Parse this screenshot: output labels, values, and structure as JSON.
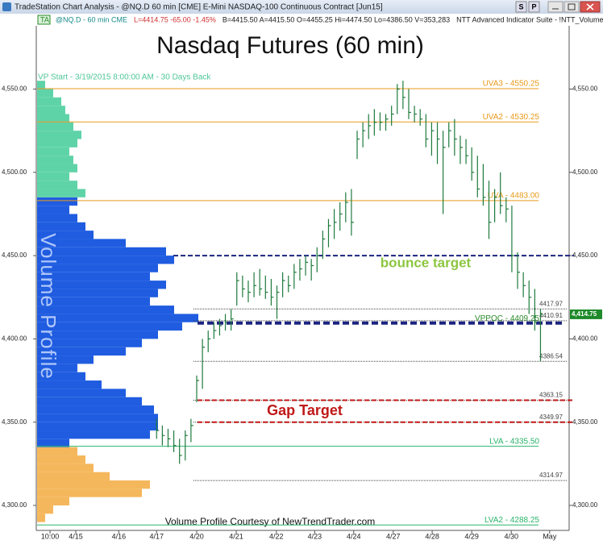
{
  "window": {
    "title": "TradeStation Chart Analysis - @NQ.D 60 min [CME] E-Mini NASDAQ-100 Continuous Contract [Jun15]",
    "buttons": [
      "S",
      "P"
    ]
  },
  "chart_data": {
    "type": "ohlc",
    "title": "Nasdaq Futures (60 min)",
    "subtitle": "VP Start - 3/19/2015 8:00:00 AM - 30 Days Back",
    "watermark": "Volume Profile",
    "footer": "Volume Profile Courtesy of NewTrendTrader.com",
    "status_line": [
      {
        "text": "TA",
        "color": "#2a8a2a"
      },
      {
        "text": "@NQ.D - 60 min CME",
        "color": "#1a8a8a"
      },
      {
        "text": "L=4414.75 -65.00 -1.45%",
        "color": "#d03030"
      },
      {
        "text": "B=4415.50 A=4415.50 O=4455.25 Hi=4474.50 Lo=4386.50 V=353,283",
        "color": "#202020"
      },
      {
        "text": "NTT Advanced Indicator Suite - !NTT_VolumeProfi",
        "color": "#202020"
      }
    ],
    "bar_color": "#1e7a3c",
    "high": [
      4352,
      4348,
      4346,
      4345,
      4340,
      4345,
      4352,
      4378,
      4400,
      4405,
      4410,
      4412,
      4415,
      4418,
      4440,
      4438,
      4435,
      4440,
      4442,
      4438,
      4436,
      4432,
      4440,
      4438,
      4445,
      4448,
      4450,
      4448,
      4455,
      4465,
      4472,
      4478,
      4482,
      4488,
      4490,
      4525,
      4530,
      4535,
      4538,
      4536,
      4535,
      4540,
      4553,
      4555,
      4550,
      4540,
      4538,
      4535,
      4530,
      4530,
      4525,
      4530,
      4532,
      4522,
      4520,
      4515,
      4510,
      4505,
      4495,
      4490,
      4500,
      4485,
      4480,
      4452,
      4440,
      4435,
      4430,
      4418
    ],
    "low": [
      4340,
      4336,
      4335,
      4332,
      4325,
      4327,
      4338,
      4362,
      4370,
      4392,
      4400,
      4402,
      4405,
      4405,
      4420,
      4425,
      4422,
      4425,
      4426,
      4424,
      4420,
      4412,
      4425,
      4428,
      4430,
      4435,
      4438,
      4435,
      4440,
      4448,
      4455,
      4460,
      4465,
      4470,
      4462,
      4508,
      4515,
      4520,
      4522,
      4525,
      4525,
      4528,
      4535,
      4538,
      4532,
      4530,
      4528,
      4515,
      4510,
      4505,
      4475,
      4515,
      4510,
      4505,
      4505,
      4495,
      4485,
      4480,
      4460,
      4470,
      4475,
      4470,
      4440,
      4430,
      4425,
      4415,
      4405,
      4386.5
    ],
    "close": [
      4345,
      4342,
      4340,
      4336,
      4330,
      4342,
      4348,
      4375,
      4395,
      4400,
      4405,
      4408,
      4410,
      4412,
      4435,
      4430,
      4428,
      4432,
      4430,
      4428,
      4425,
      4428,
      4435,
      4432,
      4440,
      4442,
      4446,
      4444,
      4450,
      4460,
      4468,
      4470,
      4475,
      4482,
      4470,
      4520,
      4525,
      4528,
      4530,
      4530,
      4532,
      4535,
      4550,
      4545,
      4536,
      4535,
      4532,
      4520,
      4525,
      4520,
      4515,
      4525,
      4520,
      4515,
      4510,
      4500,
      4490,
      4485,
      4470,
      4485,
      4480,
      4478,
      4450,
      4440,
      4432,
      4425,
      4410,
      4414.75
    ],
    "xlim": [
      -21,
      72
    ],
    "xticks": [
      {
        "value": -18.6,
        "label": "10:00"
      },
      {
        "value": -14.1,
        "label": "4/15"
      },
      {
        "value": -6.6,
        "label": "4/16"
      },
      {
        "value": 0,
        "label": "4/17"
      },
      {
        "value": 7,
        "label": "4/20"
      },
      {
        "value": 13.9,
        "label": "4/21"
      },
      {
        "value": 20.9,
        "label": "4/22"
      },
      {
        "value": 27.6,
        "label": "4/23"
      },
      {
        "value": 34.4,
        "label": "4/24"
      },
      {
        "value": 41.3,
        "label": "4/27"
      },
      {
        "value": 48.1,
        "label": "4/28"
      },
      {
        "value": 55,
        "label": "4/29"
      },
      {
        "value": 61.9,
        "label": "4/30"
      },
      {
        "value": 68.6,
        "label": "May"
      }
    ],
    "ylim": [
      4285,
      4588
    ],
    "yticks": [
      {
        "value": 4300,
        "label": "4,300.00"
      },
      {
        "value": 4350,
        "label": "4,350.00"
      },
      {
        "value": 4400,
        "label": "4,400.00"
      },
      {
        "value": 4450,
        "label": "4,450.00"
      },
      {
        "value": 4500,
        "label": "4,500.00"
      },
      {
        "value": 4550,
        "label": "4,550.00"
      }
    ],
    "last_price": {
      "value": 4414.75,
      "label": "4,414.75",
      "color": "#1e8a2a"
    },
    "profile_xlim": [
      0,
      200
    ],
    "profile": [
      {
        "color": "#f5b75c",
        "prices": [
          4290,
          4295,
          4300,
          4305,
          4310,
          4315,
          4320,
          4325,
          4330
        ],
        "volumes": [
          10,
          20,
          40,
          130,
          140,
          90,
          70,
          60,
          50
        ]
      },
      {
        "color": "#1f5ce0",
        "prices": [
          4335,
          4340,
          4345,
          4350,
          4355,
          4360,
          4365,
          4370,
          4375,
          4380,
          4385,
          4390,
          4395,
          4400,
          4405,
          4410,
          4415,
          4420,
          4425,
          4430,
          4435,
          4440,
          4445,
          4450,
          4455,
          4460,
          4465,
          4470,
          4475,
          4480
        ],
        "volumes": [
          40,
          140,
          150,
          150,
          145,
          130,
          110,
          80,
          60,
          50,
          70,
          110,
          130,
          150,
          180,
          200,
          170,
          140,
          150,
          160,
          140,
          150,
          170,
          160,
          110,
          70,
          60,
          50,
          40,
          50
        ]
      },
      {
        "color": "#5fd3a8",
        "prices": [
          4485,
          4490,
          4495,
          4500,
          4505,
          4510,
          4515,
          4520,
          4525,
          4530,
          4535,
          4540,
          4545,
          4550
        ],
        "volumes": [
          60,
          50,
          40,
          50,
          45,
          40,
          50,
          55,
          45,
          40,
          35,
          30,
          20,
          10
        ]
      }
    ],
    "levels": [
      {
        "value": 4550.25,
        "label": "UVA3 - 4550.25",
        "color": "#e89a1a",
        "style": "solid"
      },
      {
        "value": 4530.25,
        "label": "UVA2 - 4530.25",
        "color": "#e89a1a",
        "style": "solid"
      },
      {
        "value": 4483.0,
        "label": "UVA - 4483.00",
        "color": "#e89a1a",
        "style": "solid"
      },
      {
        "value": 4417.97,
        "label": "4417.97",
        "color": "#444444",
        "style": "dotted"
      },
      {
        "value": 4410.91,
        "label": "4410.91",
        "color": "#444444",
        "style": "dotted"
      },
      {
        "value": 4409.25,
        "label": "VPPOC - 4409.25",
        "color": "#2a8a2a",
        "style": "none"
      },
      {
        "value": 4386.54,
        "label": "4386.54",
        "color": "#444444",
        "style": "dotted"
      },
      {
        "value": 4363.15,
        "label": "4363.15",
        "color": "#444444",
        "style": "dotted"
      },
      {
        "value": 4349.97,
        "label": "4349.97",
        "color": "#444444",
        "style": "dotted"
      },
      {
        "value": 4335.5,
        "label": "LVA - 4335.50",
        "color": "#2ab46a",
        "style": "solid"
      },
      {
        "value": 4314.97,
        "label": "4314.97",
        "color": "#444444",
        "style": "dotted"
      },
      {
        "value": 4288.25,
        "label": "LVA2 - 4288.25",
        "color": "#2ab46a",
        "style": "solid"
      }
    ],
    "dashed_lines": [
      {
        "value": 4450,
        "color": "#1c2480"
      },
      {
        "value": 4409.5,
        "color": "#1c2480"
      },
      {
        "value": 4363.15,
        "color": "#c01818"
      },
      {
        "value": 4349.97,
        "color": "#c01818"
      }
    ],
    "annotations": [
      {
        "text": "bounce target",
        "color": "#8cc63f"
      },
      {
        "text": "Gap Target",
        "color": "#c01818"
      }
    ]
  }
}
